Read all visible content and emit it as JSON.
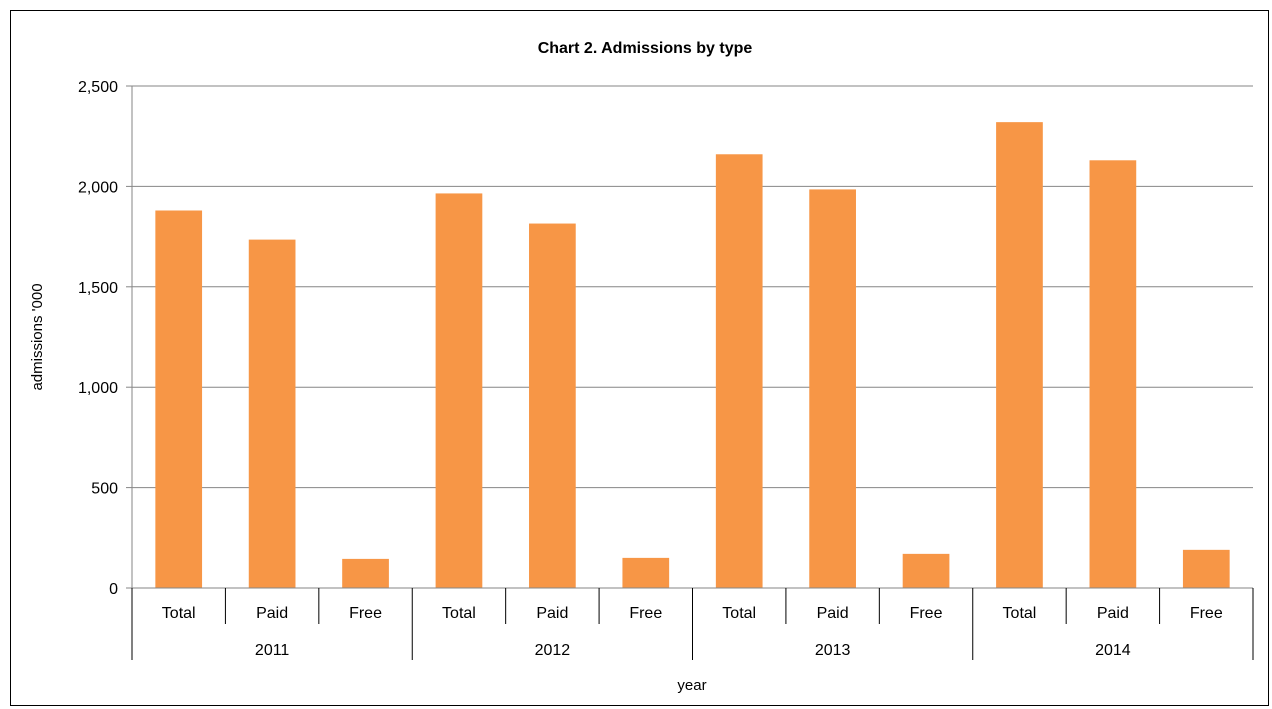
{
  "chart_data": {
    "type": "bar",
    "title": "Chart 2.  Admissions by type",
    "xlabel": "year",
    "ylabel": "admissions '000",
    "ylim": [
      0,
      2500
    ],
    "yticks": [
      "0",
      "500",
      "1,000",
      "1,500",
      "2,000",
      "2,500"
    ],
    "ytick_values": [
      0,
      500,
      1000,
      1500,
      2000,
      2500
    ],
    "grid": true,
    "bar_color": "#f79646",
    "groups": [
      {
        "year": "2011",
        "categories": [
          "Total",
          "Paid",
          "Free"
        ],
        "values": [
          1880,
          1735,
          145
        ]
      },
      {
        "year": "2012",
        "categories": [
          "Total",
          "Paid",
          "Free"
        ],
        "values": [
          1965,
          1815,
          150
        ]
      },
      {
        "year": "2013",
        "categories": [
          "Total",
          "Paid",
          "Free"
        ],
        "values": [
          2160,
          1985,
          170
        ]
      },
      {
        "year": "2014",
        "categories": [
          "Total",
          "Paid",
          "Free"
        ],
        "values": [
          2320,
          2130,
          190
        ]
      }
    ]
  }
}
